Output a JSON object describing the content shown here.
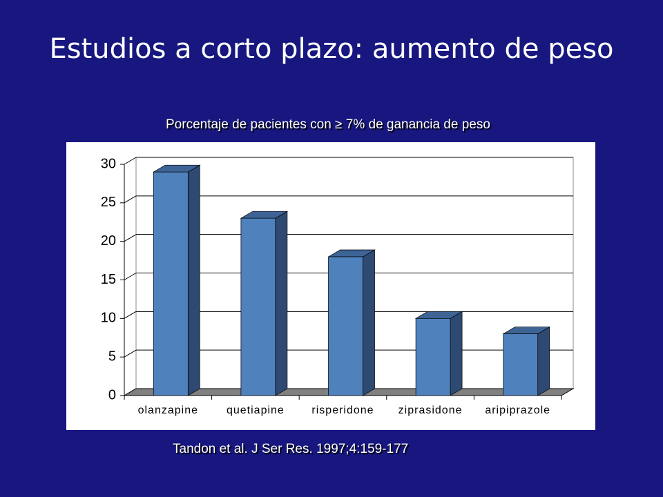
{
  "title": "Estudios a corto plazo: aumento de peso",
  "source": "Tandon et al. J Ser Res. 1997;4:159-177",
  "chart_data": {
    "type": "bar",
    "title": "Porcentaje de pacientes con ≥ 7% de ganancia de peso",
    "categories": [
      "olanzapine",
      "quetiapine",
      "risperidone",
      "ziprasidone",
      "aripiprazole"
    ],
    "values": [
      29,
      23,
      18,
      10,
      8
    ],
    "color": "#4f81bd",
    "ylim": [
      0,
      30
    ],
    "yticks": [
      0,
      5,
      10,
      15,
      20,
      25,
      30
    ],
    "grid": true
  }
}
